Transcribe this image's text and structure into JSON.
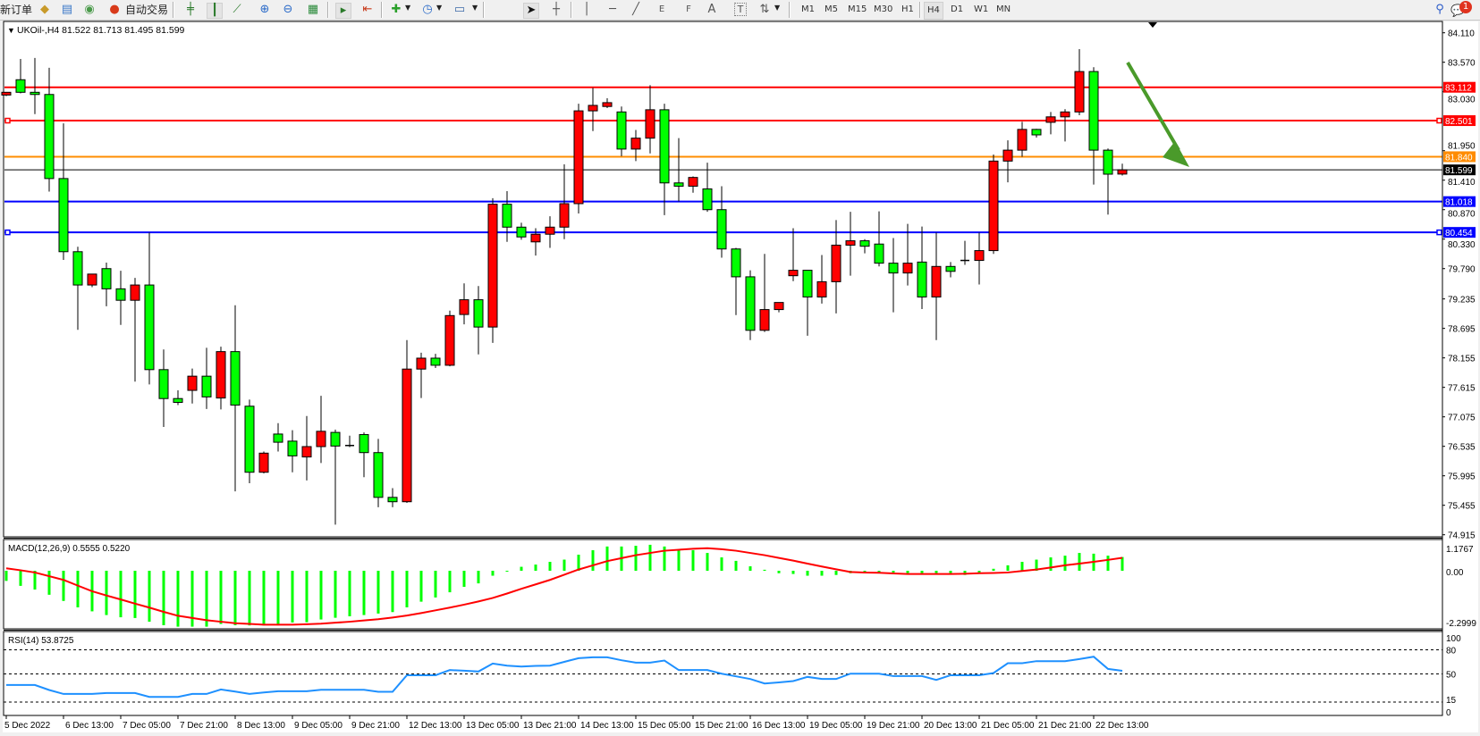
{
  "toolbar": {
    "new_order_label": "新订单",
    "auto_trading_label": "自动交易",
    "timeframes": [
      "M1",
      "M5",
      "M15",
      "M30",
      "H1",
      "H4",
      "D1",
      "W1",
      "MN"
    ],
    "active_timeframe": "H4",
    "notification_count": "1",
    "drawing_tools": {
      "fibo_channel_letter": "E",
      "fibo_letter": "F",
      "text_letter": "A",
      "label_letter": "T"
    }
  },
  "chart": {
    "symbol_header": "UKOil-,H4  81.522 81.713 81.495 81.599",
    "colors": {
      "bull": "#ff0000",
      "bear": "#00ff00",
      "resistance": "#ff0000",
      "pivot": "#ff8c00",
      "support": "#0000ff",
      "bid": "#000000",
      "arrow": "#4a9a2a",
      "rsi": "#1e90ff",
      "macd_hist": "#00ff00",
      "macd_signal": "#ff0000"
    },
    "price_ticks": [
      "84.110",
      "83.570",
      "83.030",
      "81.950",
      "81.410",
      "80.870",
      "80.330",
      "79.790",
      "79.235",
      "78.695",
      "78.155",
      "77.615",
      "77.075",
      "76.535",
      "75.995",
      "75.455",
      "74.915"
    ],
    "levels": [
      {
        "price": "83.112",
        "kind": "resistance"
      },
      {
        "price": "82.501",
        "kind": "resistance"
      },
      {
        "price": "81.840",
        "kind": "pivot"
      },
      {
        "price": "81.599",
        "kind": "bid"
      },
      {
        "price": "81.018",
        "kind": "support"
      },
      {
        "price": "80.454",
        "kind": "support"
      }
    ],
    "annotation": "green arrow pointing down",
    "time_labels": [
      "5 Dec 2022",
      "6 Dec 13:00",
      "7 Dec 05:00",
      "7 Dec 21:00",
      "8 Dec 13:00",
      "9 Dec 05:00",
      "9 Dec 21:00",
      "12 Dec 13:00",
      "13 Dec 05:00",
      "13 Dec 21:00",
      "14 Dec 13:00",
      "15 Dec 05:00",
      "15 Dec 21:00",
      "16 Dec 13:00",
      "19 Dec 05:00",
      "19 Dec 21:00",
      "20 Dec 13:00",
      "21 Dec 05:00",
      "21 Dec 21:00",
      "22 Dec 13:00"
    ]
  },
  "macd": {
    "label": "MACD(12,26,9) 0.5555 0.5220",
    "axis_labels": [
      "1.1767",
      "0.00",
      "-2.2999"
    ]
  },
  "rsi": {
    "label": "RSI(14) 53.8725",
    "axis_labels": [
      "100",
      "80",
      "50",
      "15",
      "0"
    ]
  },
  "chart_data": {
    "type": "candlestick",
    "ylim": [
      74.915,
      84.11
    ],
    "candles_ohlc": [
      [
        82.97,
        83.02,
        82.95,
        83.02
      ],
      [
        83.25,
        83.63,
        83.0,
        83.02
      ],
      [
        83.02,
        83.65,
        82.62,
        82.98
      ],
      [
        82.98,
        83.47,
        81.2,
        81.44
      ],
      [
        81.44,
        82.45,
        79.95,
        80.1
      ],
      [
        80.1,
        80.19,
        78.67,
        79.49
      ],
      [
        79.49,
        79.69,
        79.45,
        79.69
      ],
      [
        79.79,
        79.9,
        79.1,
        79.42
      ],
      [
        79.42,
        79.75,
        78.76,
        79.21
      ],
      [
        79.21,
        79.62,
        77.72,
        79.49
      ],
      [
        79.49,
        80.45,
        77.67,
        77.94
      ],
      [
        77.94,
        78.31,
        76.89,
        77.41
      ],
      [
        77.41,
        77.56,
        77.29,
        77.34
      ],
      [
        77.56,
        77.96,
        77.32,
        77.82
      ],
      [
        77.82,
        78.34,
        77.22,
        77.44
      ],
      [
        77.42,
        78.36,
        77.21,
        78.27
      ],
      [
        78.27,
        79.12,
        75.71,
        77.29
      ],
      [
        77.27,
        77.39,
        75.86,
        76.06
      ],
      [
        76.06,
        76.44,
        76.04,
        76.41
      ],
      [
        76.76,
        76.96,
        76.44,
        76.61
      ],
      [
        76.63,
        76.83,
        76.06,
        76.36
      ],
      [
        76.34,
        77.09,
        75.91,
        76.53
      ],
      [
        76.53,
        77.46,
        76.23,
        76.81
      ],
      [
        76.79,
        76.84,
        75.1,
        76.54
      ],
      [
        76.54,
        76.73,
        76.52,
        76.55
      ],
      [
        76.75,
        76.79,
        75.97,
        76.42
      ],
      [
        76.42,
        76.67,
        75.42,
        75.6
      ],
      [
        75.6,
        75.77,
        75.42,
        75.52
      ],
      [
        75.52,
        78.48,
        75.5,
        77.95
      ],
      [
        77.95,
        78.25,
        77.42,
        78.15
      ],
      [
        78.15,
        78.23,
        77.97,
        78.02
      ],
      [
        78.02,
        79.02,
        78.0,
        78.93
      ],
      [
        78.95,
        79.52,
        78.77,
        79.22
      ],
      [
        79.22,
        79.47,
        78.22,
        78.72
      ],
      [
        78.72,
        81.08,
        78.43,
        80.97
      ],
      [
        80.97,
        81.21,
        80.28,
        80.55
      ],
      [
        80.55,
        80.63,
        80.32,
        80.37
      ],
      [
        80.28,
        80.53,
        80.03,
        80.42
      ],
      [
        80.42,
        80.75,
        80.17,
        80.55
      ],
      [
        80.55,
        81.7,
        80.33,
        80.98
      ],
      [
        80.98,
        82.81,
        80.8,
        82.68
      ],
      [
        82.68,
        83.1,
        82.31,
        82.78
      ],
      [
        82.76,
        82.91,
        82.73,
        82.83
      ],
      [
        82.66,
        82.76,
        81.85,
        81.98
      ],
      [
        81.98,
        82.33,
        81.76,
        82.18
      ],
      [
        82.18,
        83.15,
        81.9,
        82.7
      ],
      [
        82.7,
        82.81,
        80.77,
        81.36
      ],
      [
        81.36,
        82.18,
        81.02,
        81.3
      ],
      [
        81.3,
        81.48,
        81.18,
        81.46
      ],
      [
        81.25,
        81.73,
        80.83,
        80.87
      ],
      [
        80.87,
        81.3,
        79.99,
        80.15
      ],
      [
        80.15,
        80.17,
        78.94,
        79.64
      ],
      [
        79.64,
        79.76,
        78.48,
        78.66
      ],
      [
        78.66,
        80.06,
        78.63,
        79.04
      ],
      [
        79.04,
        79.17,
        78.99,
        79.17
      ],
      [
        79.66,
        80.53,
        79.56,
        79.76
      ],
      [
        79.76,
        79.76,
        78.56,
        79.27
      ],
      [
        79.27,
        80.04,
        79.15,
        79.55
      ],
      [
        79.55,
        80.68,
        78.97,
        80.22
      ],
      [
        80.22,
        80.83,
        79.66,
        80.3
      ],
      [
        80.3,
        80.33,
        80.07,
        80.2
      ],
      [
        80.24,
        80.84,
        79.83,
        79.89
      ],
      [
        79.89,
        80.35,
        78.99,
        79.71
      ],
      [
        79.71,
        80.61,
        79.48,
        79.89
      ],
      [
        79.91,
        80.56,
        79.05,
        79.27
      ],
      [
        79.27,
        80.45,
        78.48,
        79.83
      ],
      [
        79.83,
        79.91,
        79.63,
        79.74
      ],
      [
        79.93,
        80.3,
        79.86,
        79.94
      ],
      [
        79.94,
        80.45,
        79.5,
        80.12
      ],
      [
        80.12,
        81.88,
        80.06,
        81.76
      ],
      [
        81.76,
        82.14,
        81.37,
        81.96
      ],
      [
        81.96,
        82.48,
        81.84,
        82.34
      ],
      [
        82.34,
        82.35,
        82.19,
        82.24
      ],
      [
        82.47,
        82.66,
        82.25,
        82.57
      ],
      [
        82.57,
        82.71,
        82.12,
        82.66
      ],
      [
        82.66,
        83.81,
        82.6,
        83.4
      ],
      [
        83.4,
        83.48,
        81.33,
        81.96
      ],
      [
        81.96,
        81.99,
        80.78,
        81.52
      ],
      [
        81.522,
        81.713,
        81.495,
        81.599
      ]
    ],
    "macd_hist": [
      -0.41,
      -0.61,
      -0.76,
      -0.97,
      -1.22,
      -1.48,
      -1.64,
      -1.79,
      -1.88,
      -1.91,
      -2.06,
      -2.2,
      -2.26,
      -2.26,
      -2.26,
      -2.15,
      -2.2,
      -2.21,
      -2.21,
      -2.21,
      -2.09,
      -2.08,
      -1.97,
      -1.9,
      -1.84,
      -1.79,
      -1.73,
      -1.67,
      -1.48,
      -1.25,
      -1.08,
      -0.87,
      -0.65,
      -0.51,
      -0.2,
      -0.02,
      0.16,
      0.25,
      0.36,
      0.45,
      0.65,
      0.83,
      0.98,
      0.98,
      1.01,
      1.05,
      0.98,
      0.83,
      0.83,
      0.72,
      0.54,
      0.4,
      0.18,
      0.04,
      -0.1,
      -0.13,
      -0.2,
      -0.2,
      -0.17,
      -0.1,
      -0.08,
      -0.07,
      -0.07,
      -0.1,
      -0.1,
      -0.1,
      -0.1,
      -0.17,
      -0.07,
      0.08,
      0.22,
      0.36,
      0.45,
      0.54,
      0.61,
      0.72,
      0.69,
      0.61,
      0.5555
    ],
    "macd_signal": [
      0.1,
      0.02,
      -0.07,
      -0.22,
      -0.37,
      -0.6,
      -0.83,
      -1.0,
      -1.16,
      -1.33,
      -1.49,
      -1.66,
      -1.82,
      -1.91,
      -2.0,
      -2.06,
      -2.12,
      -2.15,
      -2.18,
      -2.18,
      -2.18,
      -2.16,
      -2.14,
      -2.1,
      -2.06,
      -2.01,
      -1.96,
      -1.89,
      -1.81,
      -1.71,
      -1.6,
      -1.49,
      -1.37,
      -1.24,
      -1.1,
      -0.92,
      -0.73,
      -0.55,
      -0.37,
      -0.16,
      0.05,
      0.22,
      0.39,
      0.51,
      0.63,
      0.72,
      0.81,
      0.85,
      0.89,
      0.91,
      0.87,
      0.81,
      0.72,
      0.63,
      0.52,
      0.41,
      0.29,
      0.17,
      0.06,
      -0.05,
      -0.07,
      -0.08,
      -0.11,
      -0.13,
      -0.13,
      -0.13,
      -0.13,
      -0.12,
      -0.1,
      -0.09,
      -0.07,
      -0.01,
      0.05,
      0.13,
      0.22,
      0.29,
      0.36,
      0.44,
      0.522
    ],
    "macd_ylim": [
      -2.2999,
      1.1767
    ],
    "rsi": [
      36.2,
      36.2,
      36.2,
      30,
      25.1,
      25.1,
      25.1,
      26.2,
      26.2,
      26.2,
      21.4,
      21.4,
      21.4,
      25.1,
      25.1,
      30.7,
      28,
      25.1,
      27,
      28.5,
      28.5,
      28.5,
      30.3,
      30.3,
      30.3,
      30.3,
      27.8,
      27.8,
      48.4,
      48.4,
      48.4,
      54.8,
      54,
      53,
      62.9,
      60.3,
      59.2,
      60,
      60.3,
      65,
      69.6,
      70.7,
      70.7,
      67,
      64,
      64,
      66.6,
      54.8,
      54.8,
      54.8,
      50.3,
      47,
      43.7,
      38.1,
      39.5,
      41.1,
      46.3,
      43.7,
      43.7,
      50.3,
      50.3,
      50.3,
      47.3,
      47.3,
      47.3,
      42.5,
      48.4,
      48.4,
      48.4,
      51.1,
      63.3,
      63.3,
      65.9,
      65.9,
      65.9,
      68.5,
      71.4,
      56.2,
      53.87
    ],
    "rsi_levels": [
      80,
      50,
      15
    ],
    "rsi_ylim": [
      0,
      100
    ]
  }
}
